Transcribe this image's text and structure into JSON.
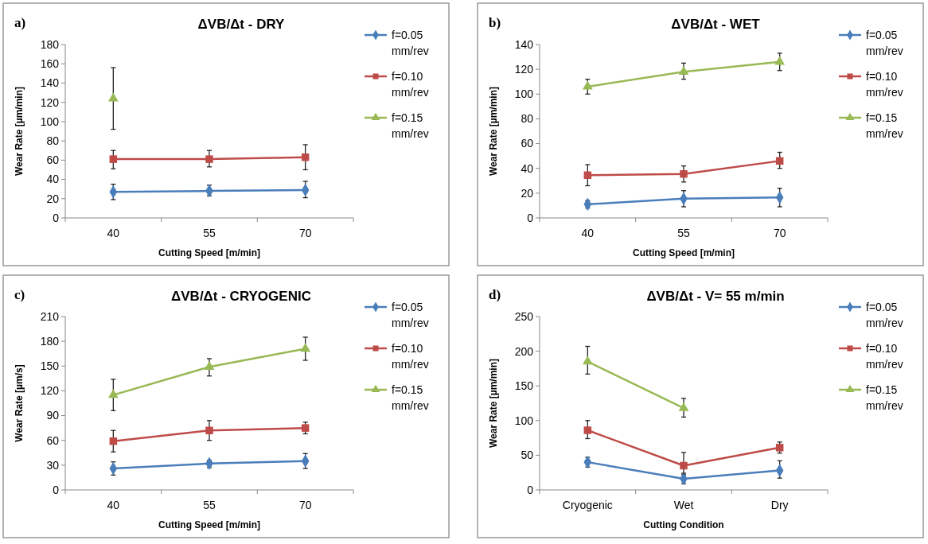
{
  "chart_data": [
    {
      "type": "line",
      "title": "ΔVB/Δt - DRY",
      "annotations": [
        "a)"
      ],
      "xlabel": "Cutting Speed [m/min]",
      "ylabel": "Wear Rate [µm/min]",
      "categories": [
        "40",
        "55",
        "70"
      ],
      "ylim": [
        0,
        180
      ],
      "yticks": [
        0,
        20,
        40,
        60,
        80,
        100,
        120,
        140,
        160,
        180
      ],
      "legend": "top right",
      "grid": false,
      "series": [
        {
          "name": "f=0.05 mm/rev",
          "color": "#4a7ebb",
          "marker": "diamond",
          "values": [
            27,
            28,
            29
          ],
          "errors": [
            [
              19,
              35
            ],
            [
              23,
              34
            ],
            [
              21,
              38
            ]
          ]
        },
        {
          "name": "f=0.10 mm/rev",
          "color": "#be4b48",
          "marker": "square",
          "values": [
            61,
            61,
            63
          ],
          "errors": [
            [
              51,
              70
            ],
            [
              53,
              70
            ],
            [
              50,
              76
            ]
          ]
        },
        {
          "name": "f=0.15 mm/rev",
          "color": "#98b954",
          "marker": "triangle",
          "values": [
            124,
            null,
            null
          ],
          "errors": [
            [
              92,
              156
            ],
            null,
            null
          ]
        }
      ]
    },
    {
      "type": "line",
      "title": "ΔVB/Δt - WET",
      "annotations": [
        "b)"
      ],
      "xlabel": "Cutting Speed [m/min]",
      "ylabel": "Wear Rate [µm/min]",
      "categories": [
        "40",
        "55",
        "70"
      ],
      "ylim": [
        0,
        140
      ],
      "yticks": [
        0,
        20,
        40,
        60,
        80,
        100,
        120,
        140
      ],
      "legend": "top right",
      "grid": false,
      "series": [
        {
          "name": "f=0.05 mm/rev",
          "color": "#4a7ebb",
          "marker": "diamond",
          "values": [
            11,
            15.5,
            16.5
          ],
          "errors": [
            [
              8,
              14
            ],
            [
              9,
              22
            ],
            [
              9,
              24
            ]
          ]
        },
        {
          "name": "f=0.10 mm/rev",
          "color": "#be4b48",
          "marker": "square",
          "values": [
            34.5,
            35.5,
            46
          ],
          "errors": [
            [
              26,
              43
            ],
            [
              29,
              42
            ],
            [
              40,
              53
            ]
          ]
        },
        {
          "name": "f=0.15 mm/rev",
          "color": "#98b954",
          "marker": "triangle",
          "values": [
            106,
            118,
            126
          ],
          "errors": [
            [
              100,
              112
            ],
            [
              112,
              125
            ],
            [
              119,
              133
            ]
          ]
        }
      ]
    },
    {
      "type": "line",
      "title": "ΔVB/Δt - CRYOGENIC",
      "annotations": [
        "c)"
      ],
      "xlabel": "Cutting Speed [m/min]",
      "ylabel": "Wear Rate [µm/s]",
      "categories": [
        "40",
        "55",
        "70"
      ],
      "ylim": [
        0,
        210
      ],
      "yticks": [
        0,
        30,
        60,
        90,
        120,
        150,
        180,
        210
      ],
      "legend": "top right",
      "grid": false,
      "series": [
        {
          "name": "f=0.05 mm/rev",
          "color": "#4a7ebb",
          "marker": "diamond",
          "values": [
            26,
            32,
            35
          ],
          "errors": [
            [
              18,
              34
            ],
            [
              27,
              36
            ],
            [
              26,
              44
            ]
          ]
        },
        {
          "name": "f=0.10 mm/rev",
          "color": "#be4b48",
          "marker": "square",
          "values": [
            59,
            72,
            75
          ],
          "errors": [
            [
              46,
              72
            ],
            [
              60,
              84
            ],
            [
              68,
              82
            ]
          ]
        },
        {
          "name": "f=0.15 mm/rev",
          "color": "#98b954",
          "marker": "triangle",
          "values": [
            115,
            149,
            171
          ],
          "errors": [
            [
              96,
              134
            ],
            [
              138,
              159
            ],
            [
              157,
              185
            ]
          ]
        }
      ]
    },
    {
      "type": "line",
      "title": "ΔVB/Δt - V= 55 m/min",
      "annotations": [
        "d)"
      ],
      "xlabel": "Cutting Condition",
      "ylabel": "Wear Rate [µm/min]",
      "categories": [
        "Cryogenic",
        "Wet",
        "Dry"
      ],
      "ylim": [
        0,
        250
      ],
      "yticks": [
        0,
        50,
        100,
        150,
        200,
        250
      ],
      "legend": "top right",
      "grid": false,
      "series": [
        {
          "name": "f=0.05 mm/rev",
          "color": "#4a7ebb",
          "marker": "diamond",
          "values": [
            40,
            16,
            28
          ],
          "errors": [
            [
              33,
              47
            ],
            [
              9,
              22
            ],
            [
              17,
              42
            ]
          ]
        },
        {
          "name": "f=0.10 mm/rev",
          "color": "#be4b48",
          "marker": "square",
          "values": [
            86,
            35,
            61
          ],
          "errors": [
            [
              74,
              100
            ],
            [
              24,
              54
            ],
            [
              53,
              69
            ]
          ]
        },
        {
          "name": "f=0.15 mm/rev",
          "color": "#98b954",
          "marker": "triangle",
          "values": [
            185,
            118,
            null
          ],
          "errors": [
            [
              167,
              207
            ],
            [
              105,
              132
            ],
            null
          ]
        }
      ]
    }
  ]
}
